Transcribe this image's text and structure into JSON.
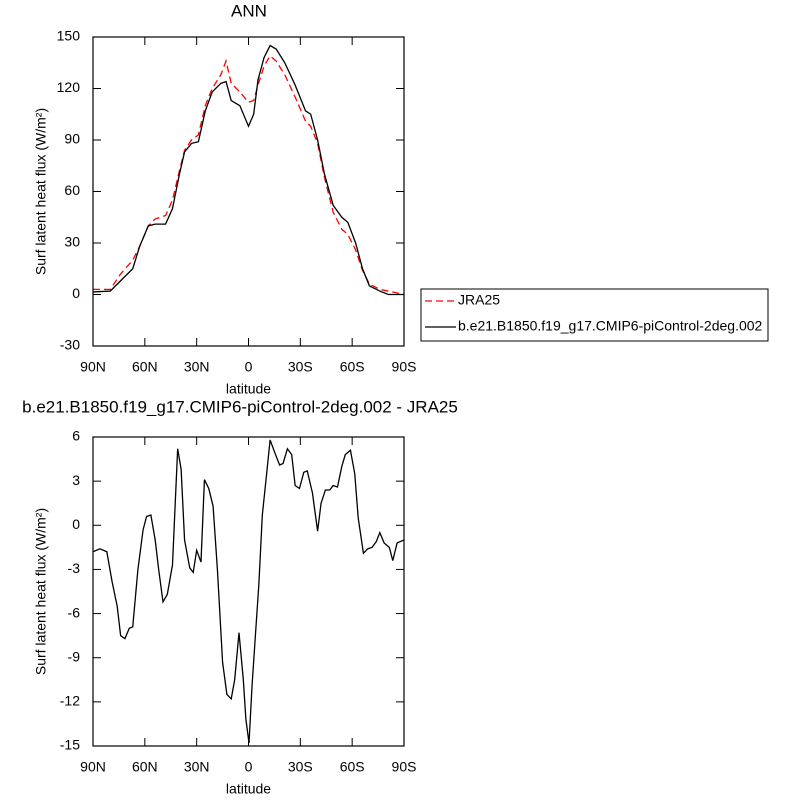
{
  "chart_data": [
    {
      "type": "line",
      "title": "ANN",
      "xlabel": "latitude",
      "ylabel": "Surf latent heat flux (W/m²)",
      "x": [
        90,
        80,
        74,
        67,
        63,
        58,
        54,
        48,
        44,
        40,
        37,
        33,
        29,
        25,
        21,
        16,
        13,
        10,
        5,
        0,
        -3,
        -5.5,
        -9,
        -12.5,
        -16,
        -21,
        -27,
        -33,
        -36,
        -40,
        -44,
        -49,
        -54,
        -57.5,
        -62,
        -66,
        -70,
        -76,
        -81,
        -90
      ],
      "series": [
        {
          "name": "JRA25",
          "color": "#ff0000",
          "linestyle": "dashed",
          "values": [
            3,
            3,
            12,
            20,
            28,
            40,
            44,
            46,
            55,
            72,
            84,
            90,
            93,
            110,
            120,
            128,
            136,
            123,
            118,
            112,
            113,
            122,
            133,
            139,
            136,
            128,
            115,
            101,
            98,
            88,
            68,
            48,
            38,
            35,
            26,
            14,
            6,
            3,
            2,
            0
          ]
        },
        {
          "name": "b.e21.B1850.f19_g17.CMIP6-piControl-2deg.002",
          "color": "#000000",
          "linestyle": "solid",
          "values": [
            1.5,
            2,
            8,
            15,
            28,
            40,
            41,
            41,
            50,
            70,
            83,
            88,
            89,
            107,
            118,
            123,
            124,
            113,
            110,
            98,
            105,
            125,
            138,
            145,
            143,
            135,
            122,
            107,
            105,
            90,
            70,
            52,
            45,
            42,
            30,
            15,
            5,
            2,
            0,
            0
          ]
        }
      ],
      "xlim": [
        90,
        -90
      ],
      "xticks": [
        {
          "value": 90,
          "label": "90N"
        },
        {
          "value": 60,
          "label": "60N"
        },
        {
          "value": 30,
          "label": "30N"
        },
        0,
        {
          "value": -30,
          "label": "30S"
        },
        {
          "value": -60,
          "label": "60S"
        },
        {
          "value": -90,
          "label": "90S"
        }
      ],
      "ylim": [
        -30,
        150
      ],
      "yticks": [
        -30,
        0,
        30,
        60,
        90,
        120,
        150
      ],
      "legend": "right"
    },
    {
      "type": "line",
      "title": "b.e21.B1850.f19_g17.CMIP6-piControl-2deg.002 - JRA25",
      "xlabel": "latitude",
      "ylabel": "Surf latent heat flux (W/m²)",
      "x": [
        90,
        86,
        82,
        79,
        76,
        74,
        71.5,
        69,
        67,
        64,
        61,
        59,
        56.5,
        54,
        52,
        49.5,
        47,
        44,
        41,
        39,
        37,
        34,
        32,
        30,
        27.5,
        25.5,
        23,
        20.5,
        18,
        15,
        12.5,
        10,
        8,
        5.5,
        3,
        1.5,
        -0.3,
        -2,
        -3.7,
        -6,
        -8,
        -10.5,
        -12.5,
        -15,
        -18,
        -20,
        -22.5,
        -25,
        -27,
        -29.5,
        -32,
        -34,
        -37,
        -40,
        -42,
        -44.5,
        -47,
        -49,
        -51.5,
        -54,
        -56,
        -59,
        -61.5,
        -63.5,
        -66.5,
        -69,
        -71.5,
        -74,
        -76,
        -78.5,
        -81.5,
        -83.5,
        -86,
        -90
      ],
      "series": [
        {
          "color": "#000000",
          "linestyle": "solid",
          "values": [
            -1.8,
            -1.6,
            -1.8,
            -3.8,
            -5.5,
            -7.5,
            -7.7,
            -7,
            -6.9,
            -3,
            -0.3,
            0.6,
            0.7,
            -1,
            -3,
            -5.2,
            -4.7,
            -2.7,
            5.2,
            3.8,
            -1,
            -2.9,
            -3.2,
            -1.7,
            -2.5,
            3.1,
            2.5,
            1.3,
            -3,
            -9.3,
            -11.5,
            -11.8,
            -10.5,
            -7.3,
            -10.5,
            -13.2,
            -14.8,
            -11,
            -8,
            -4,
            0.7,
            3.5,
            5.8,
            5,
            4.1,
            4.2,
            5.2,
            4.8,
            2.7,
            2.5,
            3.6,
            3.7,
            2.2,
            -0.4,
            1.5,
            2.4,
            2.4,
            2.7,
            2.6,
            4,
            4.8,
            5.1,
            3.5,
            0.5,
            -1.9,
            -1.6,
            -1.5,
            -1.1,
            -0.5,
            -1.2,
            -1.5,
            -2.4,
            -1.2,
            -1
          ]
        }
      ],
      "xlim": [
        90,
        -90
      ],
      "xticks": [
        {
          "value": 90,
          "label": "90N"
        },
        {
          "value": 60,
          "label": "60N"
        },
        {
          "value": 30,
          "label": "30N"
        },
        0,
        {
          "value": -30,
          "label": "30S"
        },
        {
          "value": -60,
          "label": "60S"
        },
        {
          "value": -90,
          "label": "90S"
        }
      ],
      "ylim": [
        -15,
        6
      ],
      "yticks": [
        -15,
        -12,
        -9,
        -6,
        -3,
        0,
        3,
        6
      ]
    }
  ]
}
